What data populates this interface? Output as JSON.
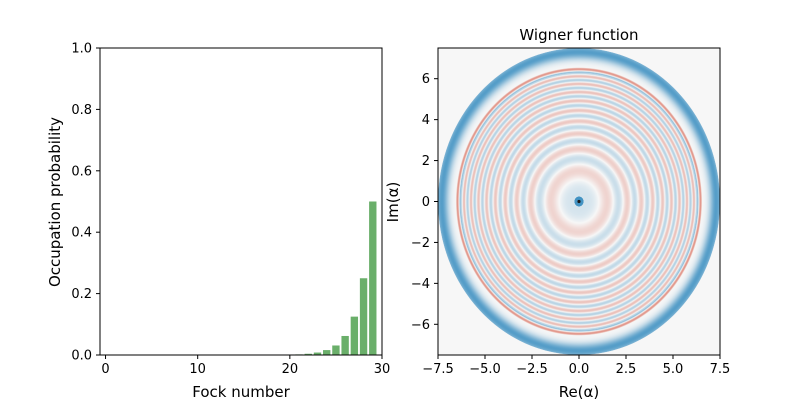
{
  "chart_data": [
    {
      "type": "bar",
      "title": "",
      "xlabel": "Fock number",
      "ylabel": "Occupation probability",
      "xlim": [
        -0.6,
        30
      ],
      "ylim": [
        0,
        1.0
      ],
      "xticks": [
        "0",
        "10",
        "20",
        "30"
      ],
      "yticks": [
        "0.0",
        "0.2",
        "0.4",
        "0.6",
        "0.8",
        "1.0"
      ],
      "color": "#6aaf6a",
      "x": [
        0,
        1,
        2,
        3,
        4,
        5,
        6,
        7,
        8,
        9,
        10,
        11,
        12,
        13,
        14,
        15,
        16,
        17,
        18,
        19,
        20,
        21,
        22,
        23,
        24,
        25,
        26,
        27,
        28,
        29
      ],
      "values": [
        0,
        0,
        0,
        0,
        0,
        0,
        0,
        0,
        0,
        0,
        0,
        0,
        0,
        0,
        0,
        0,
        0,
        0,
        0,
        0,
        0.001,
        0.002,
        0.004,
        0.008,
        0.016,
        0.031,
        0.062,
        0.125,
        0.25,
        0.5
      ]
    },
    {
      "type": "heatmap",
      "title": "Wigner function",
      "xlabel": "Re(α)",
      "ylabel": "Im(α)",
      "xlim": [
        -7.5,
        7.5
      ],
      "ylim": [
        -7.5,
        7.5
      ],
      "xticks": [
        "−7.5",
        "−5.0",
        "−2.5",
        "0.0",
        "2.5",
        "5.0",
        "7.5"
      ],
      "yticks": [
        "−6",
        "−4",
        "−2",
        "0",
        "2",
        "4",
        "6"
      ],
      "colormap": "RdBu",
      "colors": {
        "negative": "#4393c3",
        "positive": "#d6604d",
        "zero": "#f7f7f7"
      },
      "pattern": "concentric rings centered at origin, outermost blue ring at radius ≈ 7.3"
    }
  ]
}
